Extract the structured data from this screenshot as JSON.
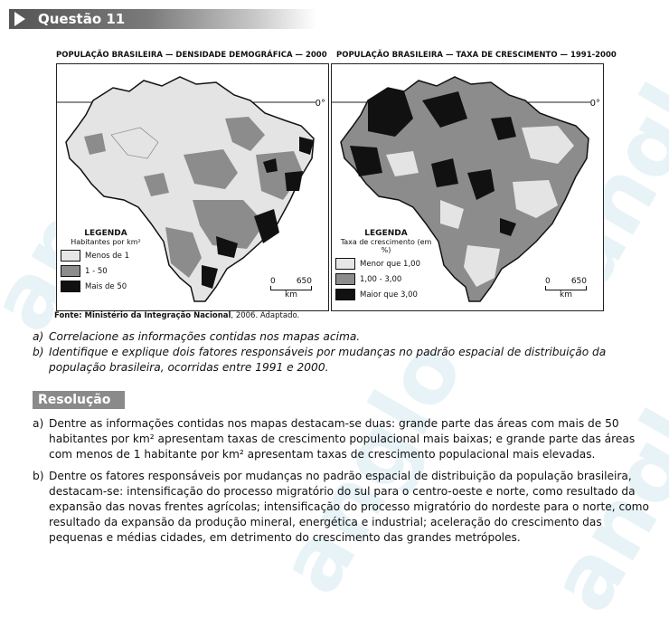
{
  "question": {
    "title": "Questão 11"
  },
  "maps": {
    "left": {
      "title": "POPULAÇÃO BRASILEIRA — DENSIDADE DEMOGRÁFICA — 2000",
      "equator": "0°",
      "legend_title": "LEGENDA",
      "legend_subtitle": "Habitantes por km²",
      "legend_items": [
        {
          "label": "Menos de 1",
          "color": "#e6e6e6"
        },
        {
          "label": "1 - 50",
          "color": "#8c8c8c"
        },
        {
          "label": "Mais de 50",
          "color": "#111111"
        }
      ],
      "scale": {
        "zero": "0",
        "max": "650",
        "unit": "km"
      }
    },
    "right": {
      "title": "POPULAÇÃO BRASILEIRA — TAXA DE CRESCIMENTO — 1991-2000",
      "equator": "0°",
      "legend_title": "LEGENDA",
      "legend_subtitle": "Taxa de crescimento (em %)",
      "legend_items": [
        {
          "label": "Menor que 1,00",
          "color": "#e6e6e6"
        },
        {
          "label": "1,00 - 3,00",
          "color": "#8c8c8c"
        },
        {
          "label": "Maior que 3,00",
          "color": "#111111"
        }
      ],
      "scale": {
        "zero": "0",
        "max": "650",
        "unit": "km"
      }
    },
    "source": {
      "label": "Fonte: Ministério da Integração Nacional",
      "rest": ", 2006. Adaptado."
    }
  },
  "questions": [
    {
      "letter": "a)",
      "text": "Correlacione as informações contidas nos mapas acima."
    },
    {
      "letter": "b)",
      "text": "Identifique e explique dois fatores responsáveis por mudanças no padrão espacial de distribuição da população brasileira, ocorridas entre 1991 e 2000."
    }
  ],
  "resolution": {
    "title": "Resolução",
    "answers": [
      {
        "letter": "a)",
        "text": "Dentre as informações contidas nos mapas destacam-se duas: grande parte das áreas com mais de 50 habitantes por km² apresentam taxas de crescimento populacional mais baixas; e grande parte das áreas com menos de 1 habitante por km² apresentam taxas de crescimento populacional mais elevadas."
      },
      {
        "letter": "b)",
        "text": "Dentre os fatores responsáveis por mudanças no padrão espacial de distribuição da população brasileira, destacam-se: intensificação do processo migratório do sul para o centro-oeste e norte, como resultado da expansão das novas frentes agrícolas; intensificação do processo migratório do nordeste para o norte, como resultado da expansão da produção mineral, energética e industrial; aceleração do crescimento das pequenas e médias cidades, em detrimento do crescimento das grandes metrópoles."
      }
    ]
  },
  "watermark": {
    "text": "anglo"
  }
}
